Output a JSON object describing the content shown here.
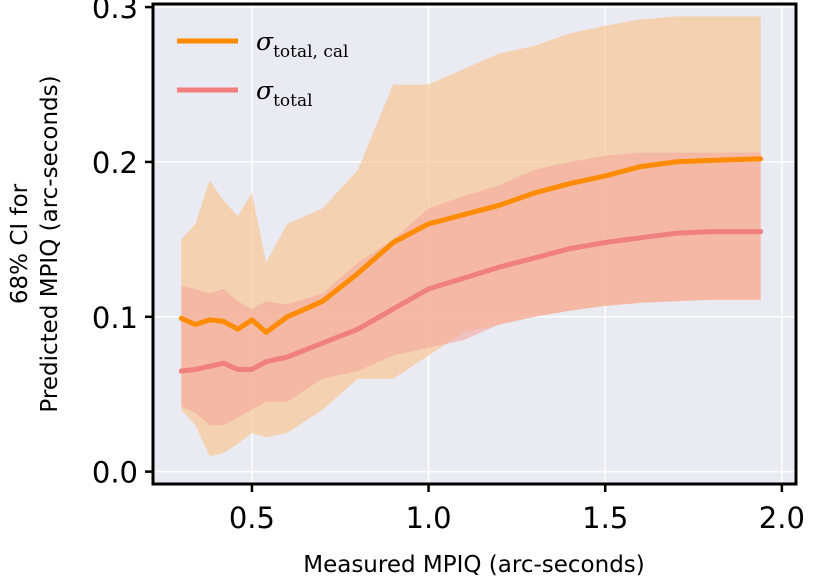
{
  "chart_data": {
    "type": "line",
    "xlabel": "Measured MPIQ (arc-seconds)",
    "ylabel_line1": "68% CI for",
    "ylabel_line2": "Predicted MPIQ (arc-seconds)",
    "xlim": [
      0.22,
      2.04
    ],
    "ylim": [
      -0.008,
      0.302
    ],
    "x_ticks": [
      0.5,
      1.0,
      1.5,
      2.0
    ],
    "x_tick_labels": [
      "0.5",
      "1.0",
      "1.5",
      "2.0"
    ],
    "y_ticks": [
      0.0,
      0.1,
      0.2,
      0.3
    ],
    "y_tick_labels": [
      "0.0",
      "0.1",
      "0.2",
      "0.3"
    ],
    "grid": true,
    "legend_position": "top-left",
    "legend": [
      {
        "symbol": "σ",
        "subscript": "total, cal",
        "series": "sigma_total_cal"
      },
      {
        "symbol": "σ",
        "subscript": "total",
        "series": "sigma_total"
      }
    ],
    "colors": {
      "plot_background": "#eaeaf2",
      "grid": "#ffffff",
      "sigma_total_cal": "#ff8c00",
      "sigma_total": "#f08080",
      "band_total_cal": "#f8c896",
      "band_total": "#f4a29a"
    },
    "x": [
      0.3,
      0.34,
      0.38,
      0.42,
      0.46,
      0.5,
      0.54,
      0.6,
      0.7,
      0.8,
      0.9,
      1.0,
      1.1,
      1.2,
      1.3,
      1.4,
      1.5,
      1.6,
      1.7,
      1.8,
      1.94
    ],
    "series": [
      {
        "name": "sigma_total_cal",
        "values": [
          0.099,
          0.095,
          0.098,
          0.097,
          0.092,
          0.098,
          0.09,
          0.1,
          0.11,
          0.128,
          0.148,
          0.16,
          0.166,
          0.172,
          0.18,
          0.186,
          0.191,
          0.197,
          0.2,
          0.201,
          0.202
        ],
        "band_upper": [
          0.15,
          0.16,
          0.188,
          0.175,
          0.165,
          0.18,
          0.135,
          0.16,
          0.17,
          0.195,
          0.25,
          0.25,
          0.26,
          0.27,
          0.275,
          0.283,
          0.288,
          0.292,
          0.294,
          0.294,
          0.294
        ],
        "band_lower": [
          0.04,
          0.03,
          0.01,
          0.012,
          0.018,
          0.025,
          0.022,
          0.025,
          0.04,
          0.06,
          0.06,
          0.075,
          0.09,
          0.095,
          0.1,
          0.104,
          0.107,
          0.109,
          0.11,
          0.111,
          0.111
        ]
      },
      {
        "name": "sigma_total",
        "values": [
          0.065,
          0.066,
          0.068,
          0.07,
          0.066,
          0.066,
          0.071,
          0.074,
          0.083,
          0.092,
          0.105,
          0.118,
          0.125,
          0.132,
          0.138,
          0.144,
          0.148,
          0.151,
          0.154,
          0.155,
          0.155
        ],
        "band_upper": [
          0.12,
          0.118,
          0.115,
          0.118,
          0.11,
          0.105,
          0.11,
          0.108,
          0.115,
          0.135,
          0.15,
          0.17,
          0.178,
          0.185,
          0.195,
          0.2,
          0.204,
          0.206,
          0.206,
          0.206,
          0.206
        ],
        "band_lower": [
          0.042,
          0.038,
          0.03,
          0.03,
          0.035,
          0.04,
          0.045,
          0.045,
          0.06,
          0.065,
          0.075,
          0.08,
          0.085,
          0.095,
          0.1,
          0.104,
          0.107,
          0.109,
          0.11,
          0.111,
          0.111
        ]
      }
    ]
  }
}
